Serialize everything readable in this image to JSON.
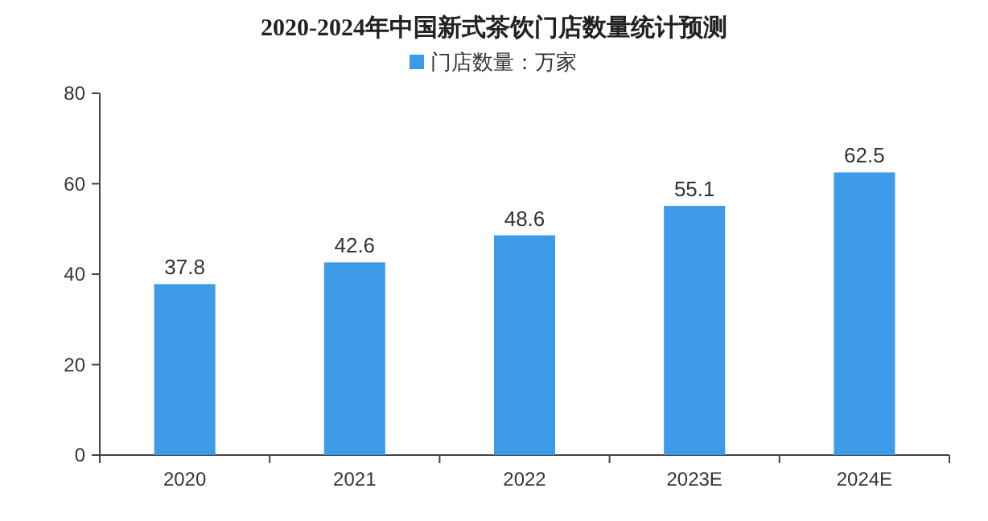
{
  "chart_data": {
    "type": "bar",
    "title": "2020-2024年中国新式茶饮门店数量统计预测",
    "categories": [
      "2020",
      "2021",
      "2022",
      "2023E",
      "2024E"
    ],
    "series": [
      {
        "name": "门店数量：万家",
        "color": "#3d9ae8",
        "values": [
          37.8,
          42.6,
          48.6,
          55.1,
          62.5
        ]
      }
    ],
    "ylim": [
      0,
      80
    ],
    "yticks": [
      0,
      20,
      40,
      60,
      80
    ],
    "data_labels": true,
    "legend": "top",
    "grid": false
  }
}
